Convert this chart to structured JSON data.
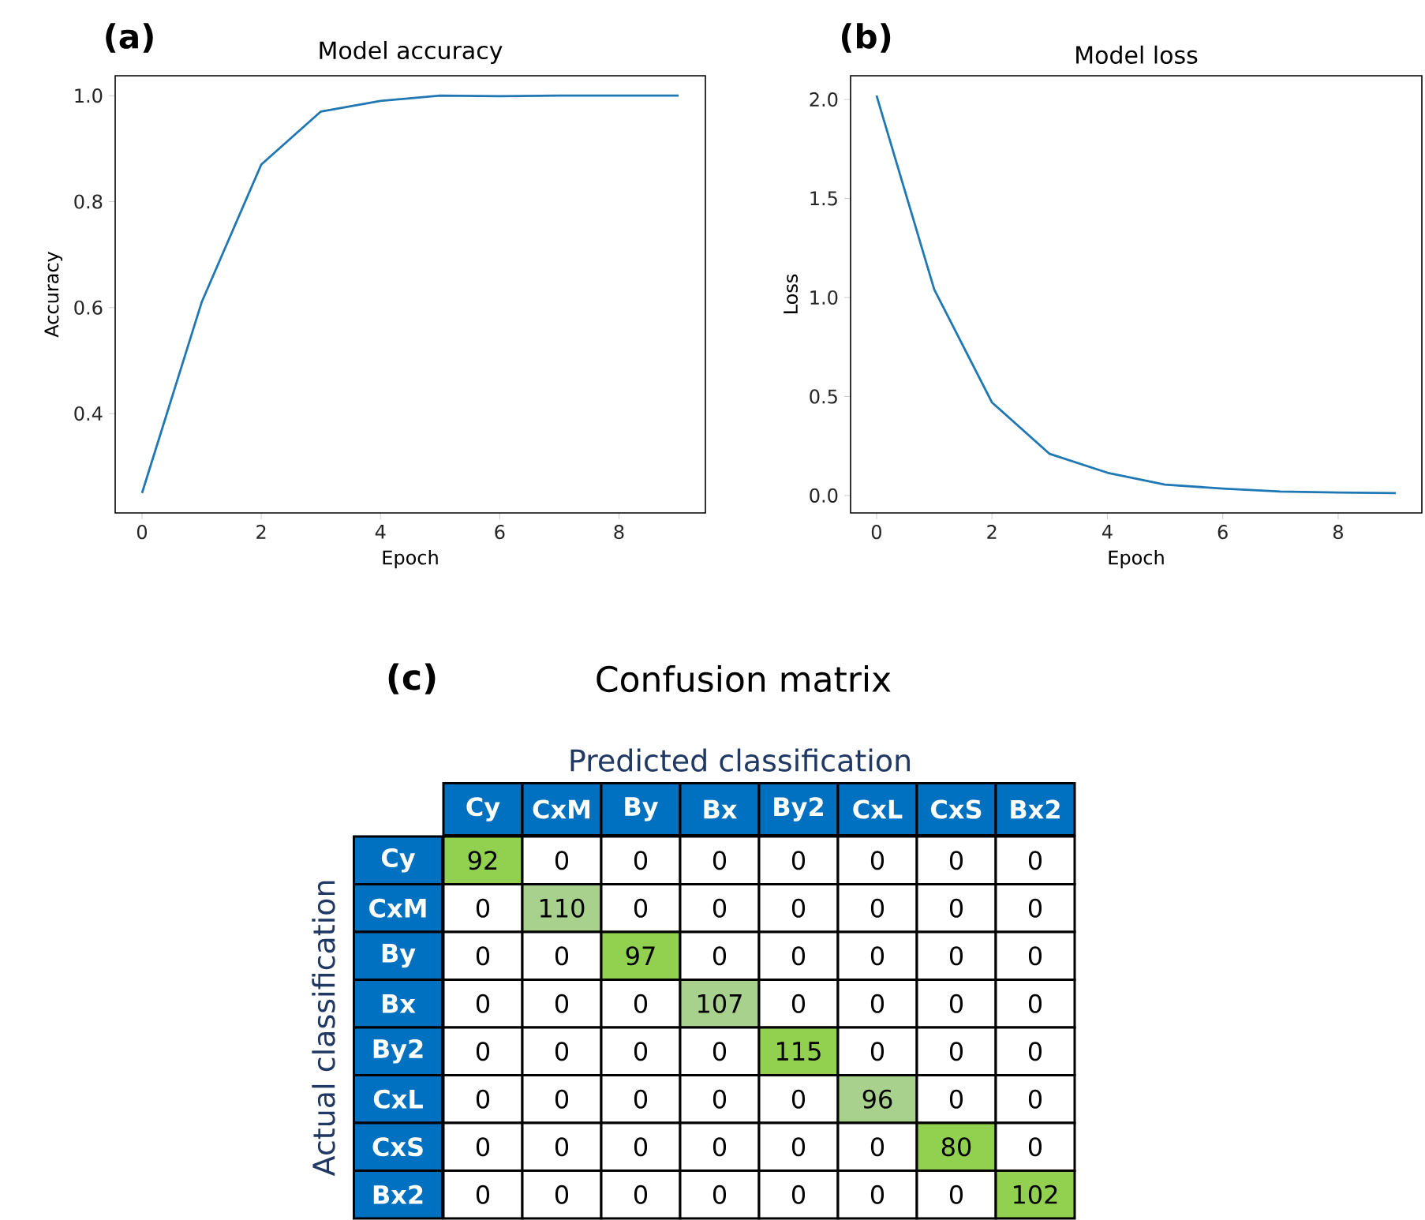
{
  "chart_data": [
    {
      "type": "line",
      "title": "Model accuracy",
      "xlabel": "Epoch",
      "ylabel": "Accuracy",
      "annotations": [
        "(a)"
      ],
      "x": [
        0,
        1,
        2,
        3,
        4,
        5,
        6,
        7,
        8,
        9
      ],
      "series": [
        {
          "color": "#1f77b4",
          "values": [
            0.25,
            0.61,
            0.87,
            0.97,
            0.99,
            1.0,
            0.999,
            1.0,
            1.0,
            1.0
          ]
        }
      ],
      "xlim": [
        -0.45,
        9.45
      ],
      "ylim": [
        0.2125,
        1.0375
      ],
      "xticks": [
        0,
        2,
        4,
        6,
        8
      ],
      "yticks": [
        0.4,
        0.6,
        0.8,
        {
          "value": 1,
          "label": "1.0"
        }
      ]
    },
    {
      "type": "line",
      "title": "Model loss",
      "xlabel": "Epoch",
      "ylabel": "Loss",
      "annotations": [
        "(b)"
      ],
      "x": [
        0,
        1,
        2,
        3,
        4,
        5,
        6,
        7,
        8,
        9
      ],
      "series": [
        {
          "color": "#1f77b4",
          "values": [
            2.02,
            1.04,
            0.47,
            0.21,
            0.115,
            0.055,
            0.035,
            0.02,
            0.015,
            0.012
          ]
        }
      ],
      "xlim": [
        -0.45,
        9.45
      ],
      "ylim": [
        -0.088,
        2.12
      ],
      "xticks": [
        0,
        2,
        4,
        6,
        8
      ],
      "yticks": [
        {
          "value": 0,
          "label": "0.0"
        },
        0.5,
        {
          "value": 1,
          "label": "1.0"
        },
        1.5,
        {
          "value": 2,
          "label": "2.0"
        }
      ]
    },
    {
      "type": "heatmap",
      "title": "Confusion matrix",
      "xlabel": "Predicted classification",
      "ylabel": "Actual classification",
      "annotations": [
        "(c)"
      ],
      "data_labels": true,
      "categories": [
        "Cy",
        "CxM",
        "By",
        "Bx",
        "By2",
        "CxL",
        "CxS",
        "Bx2"
      ],
      "y_categories": [
        "Cy",
        "CxM",
        "By",
        "Bx",
        "By2",
        "CxL",
        "CxS",
        "Bx2"
      ],
      "cells": [
        [
          92,
          0,
          0,
          0,
          0,
          0,
          0,
          0
        ],
        [
          0,
          110,
          0,
          0,
          0,
          0,
          0,
          0
        ],
        [
          0,
          0,
          97,
          0,
          0,
          0,
          0,
          0
        ],
        [
          0,
          0,
          0,
          107,
          0,
          0,
          0,
          0
        ],
        [
          0,
          0,
          0,
          0,
          115,
          0,
          0,
          0
        ],
        [
          0,
          0,
          0,
          0,
          0,
          96,
          0,
          0
        ],
        [
          0,
          0,
          0,
          0,
          0,
          0,
          80,
          0
        ],
        [
          0,
          0,
          0,
          0,
          0,
          0,
          0,
          102
        ]
      ],
      "colors": [
        [
          "#92d050",
          null,
          null,
          null,
          null,
          null,
          null,
          null
        ],
        [
          null,
          "#a9d18e",
          null,
          null,
          null,
          null,
          null,
          null
        ],
        [
          null,
          null,
          "#92d050",
          null,
          null,
          null,
          null,
          null
        ],
        [
          null,
          null,
          null,
          "#a9d18e",
          null,
          null,
          null,
          null
        ],
        [
          null,
          null,
          null,
          null,
          "#92d050",
          null,
          null,
          null
        ],
        [
          null,
          null,
          null,
          null,
          null,
          "#a9d18e",
          null,
          null
        ],
        [
          null,
          null,
          null,
          null,
          null,
          null,
          "#92d050",
          null
        ],
        [
          null,
          null,
          null,
          null,
          null,
          null,
          null,
          "#92d050"
        ]
      ]
    }
  ]
}
